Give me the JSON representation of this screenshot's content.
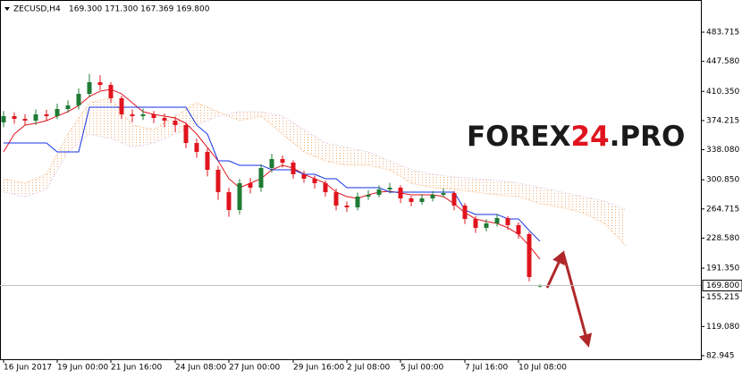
{
  "chart_data": {
    "type": "candlestick",
    "symbol": "ZECUSD,H4",
    "ohlc_text": "169.300 171.300 167.369 169.800",
    "watermark": [
      "FOREX",
      "24",
      ".PRO"
    ],
    "categories": [
      "16 Jun 2017",
      null,
      null,
      null,
      null,
      "19 Jun 00:00",
      null,
      null,
      null,
      null,
      "21 Jun 16:00",
      null,
      null,
      null,
      null,
      null,
      "24 Jun 08:00",
      null,
      null,
      null,
      null,
      "27 Jun 00:00",
      null,
      null,
      null,
      null,
      null,
      "29 Jun 16:00",
      null,
      null,
      null,
      null,
      "2 Jul 08:00",
      null,
      null,
      null,
      null,
      "5 Jul 00:00",
      null,
      null,
      null,
      null,
      null,
      "7 Jul 16:00",
      null,
      null,
      null,
      null,
      "10 Jul 08:00",
      null,
      null
    ],
    "open": [
      372.0,
      379.7,
      376.3,
      374.1,
      381.9,
      379.7,
      388.5,
      392.9,
      407.3,
      421.7,
      418.4,
      401.8,
      381.9,
      379.7,
      381.9,
      377.4,
      374.1,
      368.6,
      346.4,
      335.4,
      313.2,
      285.5,
      263.4,
      296.6,
      291.1,
      315.4,
      326.5,
      322.1,
      307.7,
      302.2,
      296.6,
      285.5,
      268.9,
      266.7,
      280.0,
      282.2,
      288.9,
      291.1,
      277.8,
      273.4,
      277.8,
      282.2,
      284.4,
      268.9,
      252.3,
      241.3,
      246.8,
      253.4,
      244.6,
      233.5,
      169.3
    ],
    "high": [
      386.0,
      384.5,
      382.0,
      388.0,
      387.5,
      395.0,
      399.0,
      414.0,
      432.0,
      430.5,
      422.0,
      405.0,
      388.0,
      389.0,
      386.0,
      383.0,
      379.0,
      372.0,
      352.0,
      340.0,
      318.0,
      291.0,
      302.0,
      303.0,
      320.0,
      333.0,
      331.0,
      325.0,
      312.0,
      306.0,
      300.0,
      290.0,
      274.0,
      285.0,
      288.0,
      294.0,
      297.0,
      294.0,
      281.0,
      283.0,
      287.0,
      290.0,
      287.0,
      272.0,
      256.0,
      252.0,
      258.0,
      256.0,
      248.0,
      236.0,
      171.3
    ],
    "low": [
      366.0,
      370.2,
      368.5,
      369.0,
      374.0,
      376.0,
      384.0,
      388.0,
      403.0,
      412.0,
      396.0,
      376.0,
      372.0,
      375.0,
      371.0,
      366.0,
      360.0,
      340.0,
      328.0,
      305.0,
      276.0,
      255.0,
      258.0,
      284.0,
      286.0,
      310.0,
      316.0,
      302.0,
      297.0,
      290.0,
      280.0,
      263.0,
      261.0,
      263.0,
      276.0,
      279.0,
      284.0,
      272.0,
      268.0,
      270.0,
      274.0,
      279.0,
      263.0,
      246.0,
      235.0,
      237.0,
      243.0,
      239.0,
      228.0,
      175.0,
      167.369
    ],
    "close": [
      379.7,
      376.3,
      374.1,
      381.9,
      379.7,
      388.5,
      392.9,
      407.3,
      421.7,
      418.4,
      401.8,
      381.9,
      379.7,
      381.9,
      377.4,
      374.1,
      368.6,
      346.4,
      335.4,
      313.2,
      285.5,
      263.4,
      296.6,
      291.1,
      315.4,
      326.5,
      322.1,
      307.7,
      302.2,
      296.6,
      285.5,
      268.9,
      266.7,
      280.0,
      282.2,
      288.9,
      291.1,
      277.8,
      273.4,
      277.8,
      282.2,
      284.4,
      268.9,
      252.3,
      241.3,
      246.8,
      253.4,
      244.6,
      233.5,
      180.4,
      169.8
    ],
    "up_color": "#1e7b34",
    "down_color": "#e0141e",
    "lines": [
      {
        "color": "#e0141e",
        "values": [
          335.4,
          357.5,
          368.6,
          370.8,
          374.1,
          379.7,
          385.2,
          392.9,
          404.0,
          410.7,
          412.9,
          407.3,
          396.3,
          385.2,
          381.9,
          379.7,
          377.4,
          370.8,
          357.5,
          340.9,
          324.3,
          302.2,
          291.1,
          296.6,
          302.2,
          313.2,
          318.8,
          315.4,
          307.7,
          302.2,
          296.6,
          285.6,
          280.0,
          277.8,
          282.2,
          285.6,
          286.7,
          284.5,
          282.2,
          282.2,
          282.2,
          280.0,
          271.2,
          260.1,
          252.4,
          249.1,
          246.8,
          241.3,
          233.5,
          219.1,
          202.5
        ]
      },
      {
        "color": "#1432e6",
        "values": [
          346.4,
          346.4,
          346.4,
          346.4,
          346.4,
          335.4,
          335.4,
          335.4,
          390.7,
          390.7,
          390.7,
          390.7,
          390.7,
          390.7,
          390.7,
          390.7,
          390.7,
          390.7,
          368.6,
          357.5,
          324.3,
          324.3,
          318.8,
          318.8,
          318.8,
          313.2,
          313.2,
          313.2,
          307.7,
          307.7,
          302.2,
          302.2,
          291.1,
          291.1,
          291.1,
          291.1,
          285.6,
          285.6,
          285.6,
          285.6,
          285.6,
          285.6,
          285.6,
          263.4,
          257.9,
          257.9,
          257.9,
          252.4,
          252.4,
          238.0,
          224.6
        ]
      }
    ],
    "cloud": [
      {
        "color": "#f4a460",
        "values": [
          302.2,
          296.6,
          307.7,
          357.5,
          396.3,
          401.8,
          368.6,
          363.1,
          379.7,
          396.3,
          385.2,
          374.1,
          379.7,
          357.5,
          335.4,
          324.3,
          318.8,
          318.8,
          313.2,
          296.6,
          291.1,
          288.9,
          285.6,
          282.2,
          280.0,
          271.2,
          266.7,
          260.1,
          246.8,
          219.1
        ]
      },
      {
        "color": "#d8b4e2",
        "values": [
          285.6,
          280.0,
          288.9,
          335.4,
          357.5,
          352.0,
          340.9,
          346.4,
          357.5,
          368.6,
          379.7,
          385.2,
          385.2,
          379.7,
          363.1,
          346.4,
          340.9,
          335.4,
          324.3,
          313.2,
          307.7,
          304.4,
          302.2,
          299.9,
          296.6,
          291.1,
          285.6,
          280.0,
          274.5,
          263.4
        ]
      }
    ],
    "price_tag": {
      "value": 169.8,
      "label": "169.800"
    },
    "ylim": [
      78.52,
      521.36
    ],
    "yticks": [
      483.715,
      {
        "value": 447.58,
        "label": "447.580"
      },
      {
        "value": 410.35,
        "label": "410.350"
      },
      374.215,
      {
        "value": 338.08,
        "label": "338.080"
      },
      {
        "value": 300.85,
        "label": "300.850"
      },
      264.715,
      {
        "value": 228.58,
        "label": "228.580"
      },
      {
        "value": 191.35,
        "label": "191.350"
      },
      155.215,
      {
        "value": 119.08,
        "label": "119.080"
      },
      82.945
    ]
  }
}
